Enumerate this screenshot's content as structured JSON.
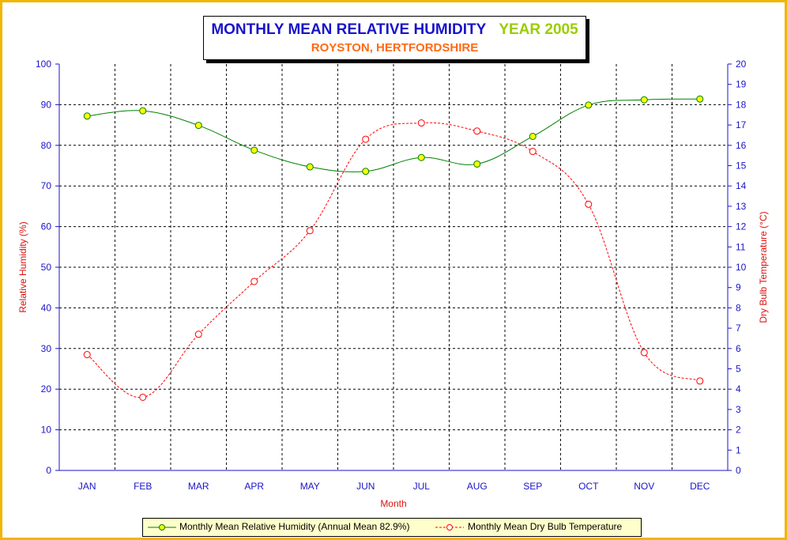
{
  "title": {
    "main": "MONTHLY MEAN RELATIVE HUMIDITY",
    "year": "YEAR 2005",
    "subtitle": "ROYSTON, HERTFORDSHIRE"
  },
  "chart_data": {
    "type": "line",
    "categories": [
      "JAN",
      "FEB",
      "MAR",
      "APR",
      "MAY",
      "JUN",
      "JUL",
      "AUG",
      "SEP",
      "OCT",
      "NOV",
      "DEC"
    ],
    "xlabel": "Month",
    "ylabel_left": "Relative Humidity (%)",
    "ylabel_right": "Dry Bulb Temperature (°C)",
    "ylim_left": [
      0,
      100
    ],
    "yticks_left": [
      "0",
      "10",
      "20",
      "30",
      "40",
      "50",
      "60",
      "70",
      "80",
      "90",
      "100"
    ],
    "ylim_right": [
      0,
      20
    ],
    "yticks_right": [
      "0",
      "1",
      "2",
      "3",
      "4",
      "5",
      "6",
      "7",
      "8",
      "9",
      "10",
      "11",
      "12",
      "13",
      "14",
      "15",
      "16",
      "17",
      "18",
      "19",
      "20"
    ],
    "grid": true,
    "legend_position": "bottom",
    "series": [
      {
        "name": "Monthly Mean Relative Humidity (Annual Mean 82.9%)",
        "axis": "left",
        "color": "#008000",
        "marker_fill": "#ffff00",
        "values": [
          87.2,
          88.5,
          84.9,
          78.8,
          74.7,
          73.6,
          77.0,
          75.4,
          82.2,
          89.9,
          91.2,
          91.4
        ]
      },
      {
        "name": "Monthly Mean Dry Bulb Temperature",
        "axis": "right",
        "color": "#ff0000",
        "marker_fill": "none",
        "values": [
          5.7,
          3.6,
          6.7,
          9.3,
          11.8,
          16.3,
          17.1,
          16.7,
          15.7,
          13.1,
          5.8,
          4.4
        ]
      }
    ]
  }
}
